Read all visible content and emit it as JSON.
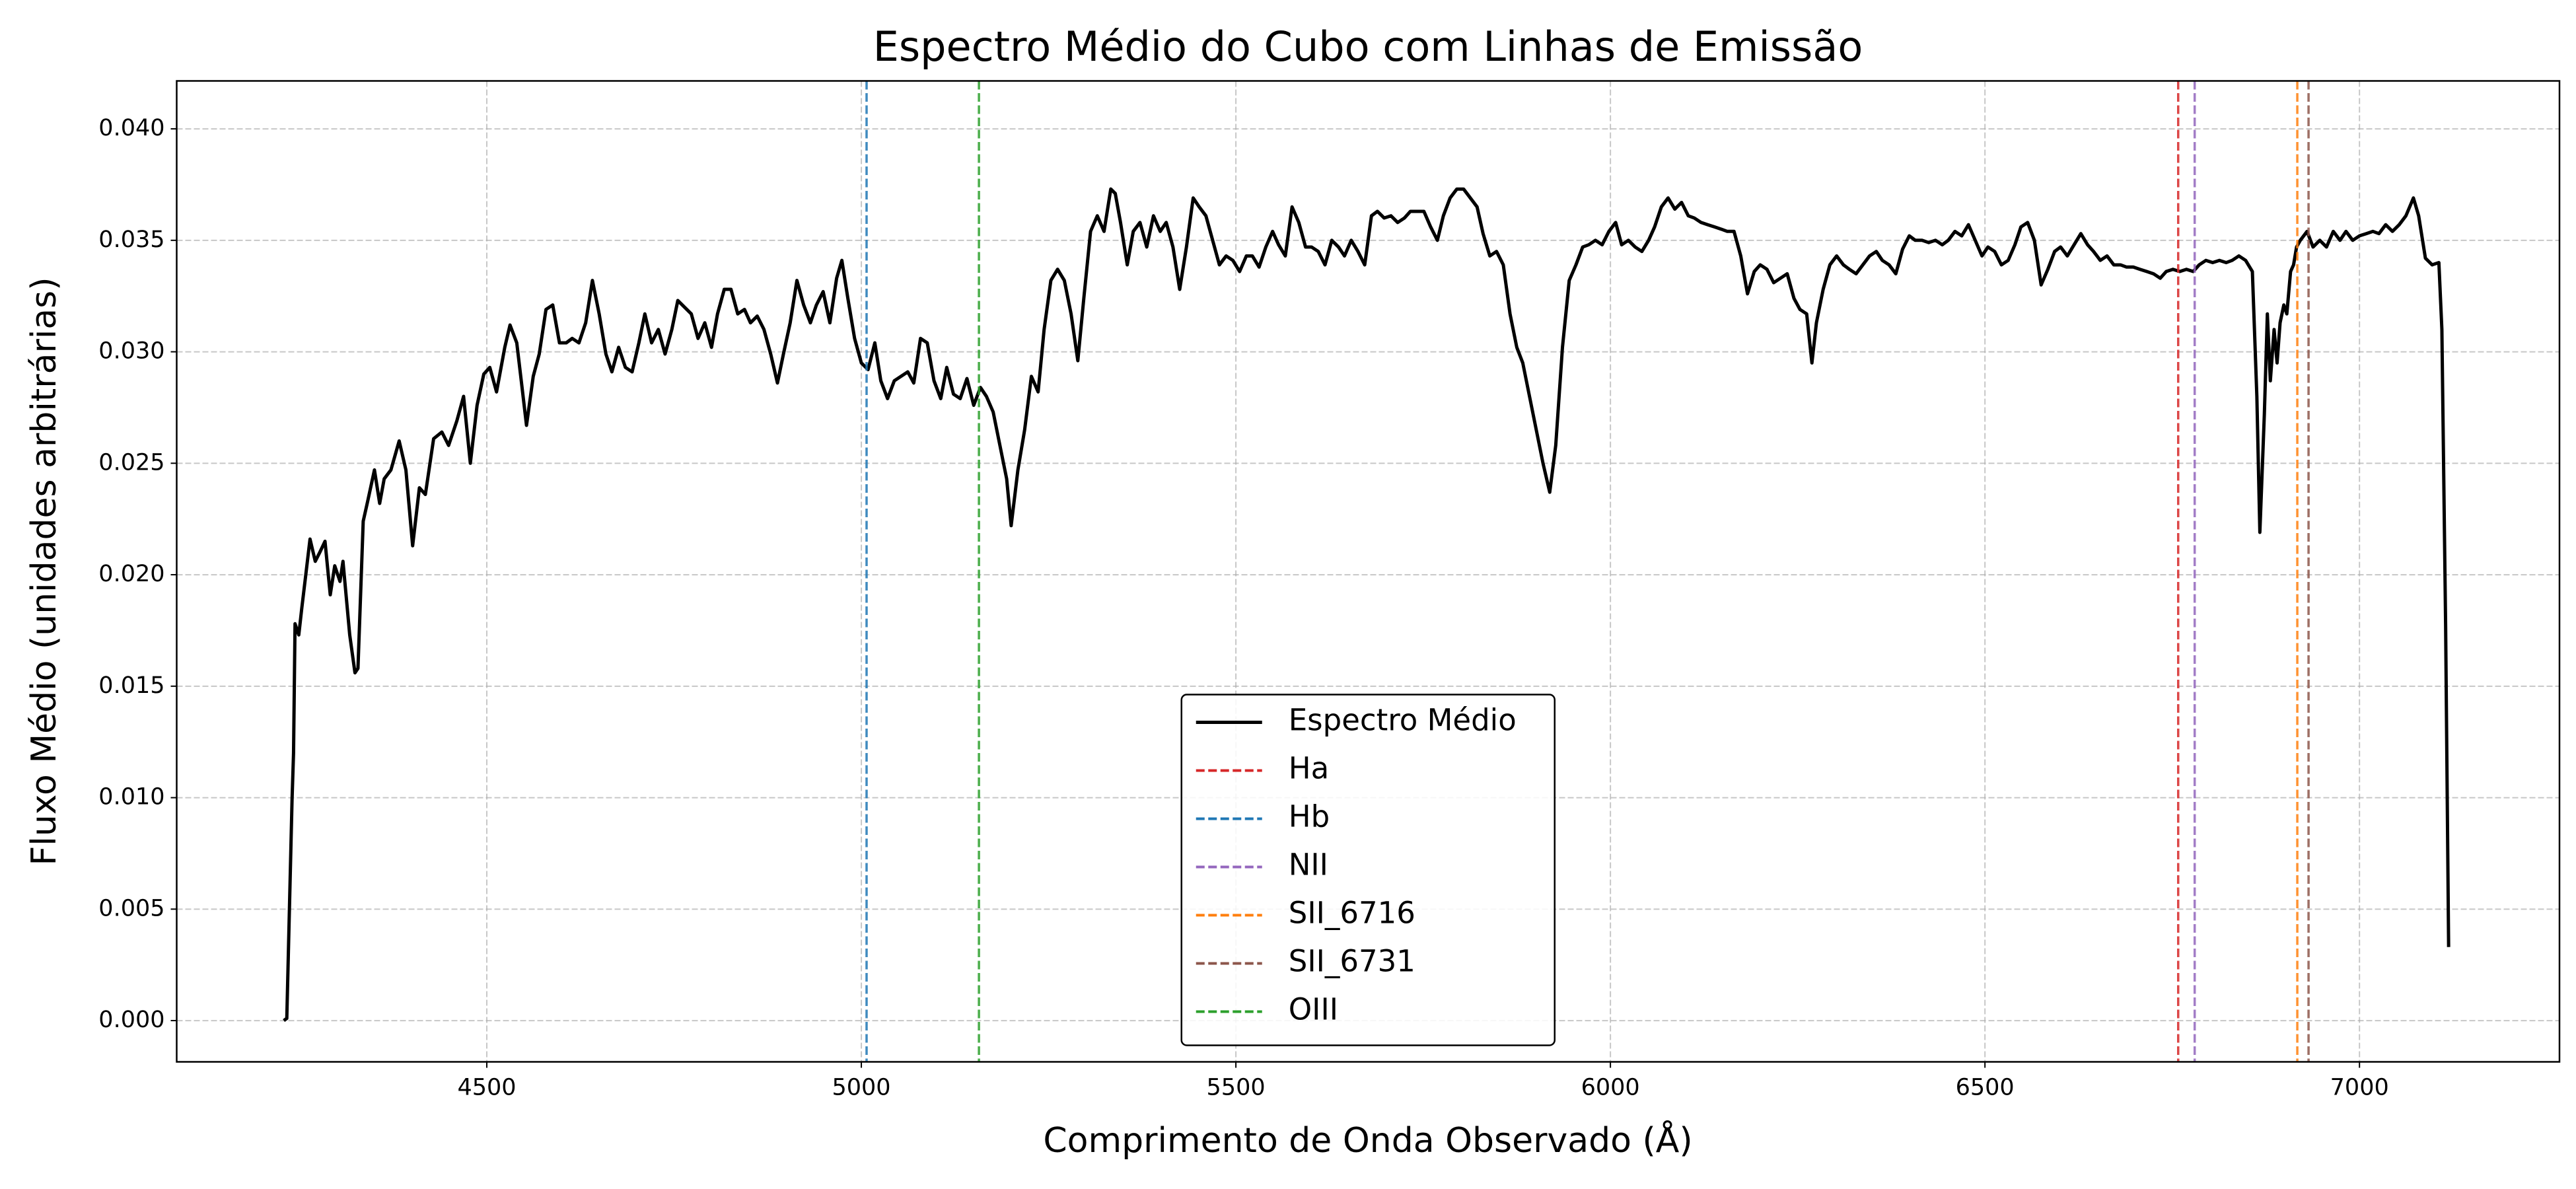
{
  "chart_data": {
    "type": "line",
    "title": "Espectro Médio do Cubo com Linhas de Emissão",
    "xlabel": "Comprimento de Onda Observado (Å)",
    "ylabel": "Fluxo Médio (unidades arbitrárias)",
    "xlim": [
      4086,
      7267
    ],
    "ylim": [
      -0.00185,
      0.04215
    ],
    "xticks": [
      4500,
      5000,
      5500,
      6000,
      6500,
      7000
    ],
    "yticks": [
      {
        "value": 0,
        "label": "0.000"
      },
      0.005,
      {
        "value": 0.01,
        "label": "0.010"
      },
      0.015,
      {
        "value": 0.02,
        "label": "0.020"
      },
      0.025,
      {
        "value": 0.03,
        "label": "0.030"
      },
      0.035,
      {
        "value": 0.04,
        "label": "0.040"
      }
    ],
    "grid": true,
    "legend": "lower center",
    "x": [
      4229,
      4233,
      4240,
      4242,
      4244,
      4249,
      4253,
      4258,
      4264,
      4271,
      4277,
      4284,
      4291,
      4297,
      4304,
      4308,
      4317,
      4324,
      4328,
      4335,
      4341,
      4350,
      4357,
      4363,
      4372,
      4383,
      4392,
      4401,
      4410,
      4418,
      4429,
      4440,
      4449,
      4460,
      4469,
      4478,
      4487,
      4496,
      4504,
      4513,
      4524,
      4531,
      4540,
      4546,
      4553,
      4562,
      4570,
      4579,
      4588,
      4597,
      4606,
      4614,
      4623,
      4632,
      4641,
      4650,
      4659,
      4667,
      4676,
      4685,
      4694,
      4703,
      4711,
      4720,
      4729,
      4738,
      4747,
      4755,
      4764,
      4773,
      4782,
      4791,
      4800,
      4808,
      4817,
      4826,
      4835,
      4844,
      4852,
      4861,
      4870,
      4879,
      4888,
      4896,
      4905,
      4914,
      4923,
      4932,
      4940,
      4949,
      4958,
      4967,
      4974,
      4982,
      4991,
      5000,
      5009,
      5018,
      5026,
      5035,
      5044,
      5053,
      5062,
      5070,
      5079,
      5088,
      5097,
      5106,
      5114,
      5123,
      5132,
      5141,
      5150,
      5159,
      5167,
      5176,
      5185,
      5194,
      5200,
      5209,
      5218,
      5227,
      5236,
      5244,
      5253,
      5262,
      5271,
      5280,
      5289,
      5297,
      5306,
      5315,
      5324,
      5333,
      5339,
      5346,
      5355,
      5363,
      5372,
      5381,
      5390,
      5399,
      5407,
      5416,
      5425,
      5434,
      5443,
      5451,
      5460,
      5469,
      5478,
      5487,
      5496,
      5505,
      5514,
      5522,
      5531,
      5540,
      5549,
      5557,
      5566,
      5575,
      5584,
      5593,
      5601,
      5610,
      5619,
      5628,
      5637,
      5645,
      5654,
      5663,
      5672,
      5681,
      5689,
      5698,
      5707,
      5716,
      5725,
      5733,
      5742,
      5751,
      5760,
      5769,
      5777,
      5786,
      5795,
      5804,
      5813,
      5822,
      5830,
      5839,
      5848,
      5857,
      5866,
      5875,
      5883,
      5892,
      5901,
      5910,
      5919,
      5927,
      5936,
      5945,
      5954,
      5963,
      5971,
      5980,
      5989,
      5998,
      6007,
      6015,
      6024,
      6033,
      6042,
      6051,
      6059,
      6068,
      6077,
      6086,
      6095,
      6104,
      6112,
      6121,
      6130,
      6139,
      6148,
      6156,
      6165,
      6174,
      6183,
      6192,
      6200,
      6209,
      6218,
      6227,
      6236,
      6245,
      6253,
      6262,
      6269,
      6275,
      6284,
      6293,
      6302,
      6311,
      6319,
      6328,
      6337,
      6346,
      6355,
      6363,
      6372,
      6381,
      6390,
      6399,
      6407,
      6416,
      6425,
      6434,
      6443,
      6451,
      6460,
      6469,
      6478,
      6487,
      6496,
      6504,
      6513,
      6522,
      6531,
      6540,
      6548,
      6557,
      6566,
      6575,
      6584,
      6593,
      6601,
      6610,
      6619,
      6628,
      6637,
      6645,
      6654,
      6663,
      6672,
      6681,
      6689,
      6698,
      6707,
      6716,
      6725,
      6734,
      6742,
      6751,
      6760,
      6769,
      6778,
      6786,
      6795,
      6804,
      6813,
      6822,
      6830,
      6839,
      6848,
      6857,
      6863,
      6867,
      6873,
      6877,
      6881,
      6886,
      6890,
      6894,
      6899,
      6903,
      6908,
      6912,
      6916,
      6921,
      6930,
      6938,
      6947,
      6956,
      6965,
      6974,
      6982,
      6991,
      7000,
      7009,
      7018,
      7026,
      7035,
      7044,
      7053,
      7062,
      7072,
      7079,
      7088,
      7097,
      7106,
      7110,
      7115,
      7119
    ],
    "series": [
      {
        "name": "Espectro Médio",
        "color": "#000000",
        "values": [
          0.0,
          0.0001,
          0.0099,
          0.012,
          0.0178,
          0.0173,
          0.0185,
          0.0199,
          0.0216,
          0.0206,
          0.021,
          0.0215,
          0.0191,
          0.0204,
          0.0197,
          0.0206,
          0.0173,
          0.0156,
          0.0158,
          0.0224,
          0.0233,
          0.0247,
          0.0232,
          0.0243,
          0.0247,
          0.026,
          0.0247,
          0.0213,
          0.0239,
          0.0236,
          0.0261,
          0.0264,
          0.0258,
          0.0269,
          0.028,
          0.025,
          0.0276,
          0.029,
          0.0293,
          0.0282,
          0.0302,
          0.0312,
          0.0304,
          0.0287,
          0.0267,
          0.0289,
          0.0299,
          0.0319,
          0.0321,
          0.0304,
          0.0304,
          0.0306,
          0.0304,
          0.0313,
          0.0332,
          0.0317,
          0.0299,
          0.0291,
          0.0302,
          0.0293,
          0.0291,
          0.0304,
          0.0317,
          0.0304,
          0.031,
          0.0299,
          0.031,
          0.0323,
          0.032,
          0.0317,
          0.0306,
          0.0313,
          0.0302,
          0.0317,
          0.0328,
          0.0328,
          0.0317,
          0.0319,
          0.0313,
          0.0316,
          0.031,
          0.0299,
          0.0286,
          0.0299,
          0.0313,
          0.0332,
          0.0321,
          0.0313,
          0.0321,
          0.0327,
          0.0313,
          0.0333,
          0.0341,
          0.0324,
          0.0306,
          0.0295,
          0.0292,
          0.0304,
          0.0287,
          0.0279,
          0.0287,
          0.0289,
          0.0291,
          0.0286,
          0.0306,
          0.0304,
          0.0287,
          0.0279,
          0.0293,
          0.0281,
          0.0279,
          0.0288,
          0.0276,
          0.0284,
          0.028,
          0.0273,
          0.0258,
          0.0243,
          0.0222,
          0.0247,
          0.0265,
          0.0289,
          0.0282,
          0.031,
          0.0332,
          0.0337,
          0.0332,
          0.0317,
          0.0296,
          0.0324,
          0.0354,
          0.0361,
          0.0354,
          0.0373,
          0.0371,
          0.0358,
          0.0339,
          0.0354,
          0.0358,
          0.0347,
          0.0361,
          0.0354,
          0.0358,
          0.0347,
          0.0328,
          0.0347,
          0.0369,
          0.0365,
          0.0361,
          0.035,
          0.0339,
          0.0343,
          0.0341,
          0.0336,
          0.0343,
          0.0343,
          0.0338,
          0.0347,
          0.0354,
          0.0348,
          0.0343,
          0.0365,
          0.0358,
          0.0347,
          0.0347,
          0.0345,
          0.0339,
          0.035,
          0.0347,
          0.0343,
          0.035,
          0.0345,
          0.0339,
          0.0361,
          0.0363,
          0.036,
          0.0361,
          0.0358,
          0.036,
          0.0363,
          0.0363,
          0.0363,
          0.0356,
          0.035,
          0.0361,
          0.0369,
          0.0373,
          0.0373,
          0.0369,
          0.0365,
          0.0353,
          0.0343,
          0.0345,
          0.0339,
          0.0317,
          0.0302,
          0.0295,
          0.028,
          0.0265,
          0.025,
          0.0237,
          0.0258,
          0.0302,
          0.0332,
          0.0339,
          0.0347,
          0.0348,
          0.035,
          0.0348,
          0.0354,
          0.0358,
          0.0348,
          0.035,
          0.0347,
          0.0345,
          0.035,
          0.0356,
          0.0365,
          0.0369,
          0.0364,
          0.0367,
          0.0361,
          0.036,
          0.0358,
          0.0357,
          0.0356,
          0.0355,
          0.0354,
          0.0354,
          0.0343,
          0.0326,
          0.0336,
          0.0339,
          0.0337,
          0.0331,
          0.0333,
          0.0335,
          0.0324,
          0.0319,
          0.0317,
          0.0295,
          0.0313,
          0.0328,
          0.0339,
          0.0343,
          0.0339,
          0.0337,
          0.0335,
          0.0339,
          0.0343,
          0.0345,
          0.0341,
          0.0339,
          0.0335,
          0.0346,
          0.0352,
          0.035,
          0.035,
          0.0349,
          0.035,
          0.0348,
          0.035,
          0.0354,
          0.0352,
          0.0357,
          0.035,
          0.0343,
          0.0347,
          0.0345,
          0.0339,
          0.0341,
          0.0348,
          0.0356,
          0.0358,
          0.035,
          0.033,
          0.0337,
          0.0345,
          0.0347,
          0.0343,
          0.0348,
          0.0353,
          0.0348,
          0.0345,
          0.0341,
          0.0343,
          0.0339,
          0.0339,
          0.0338,
          0.0338,
          0.0337,
          0.0336,
          0.0335,
          0.0333,
          0.0336,
          0.0337,
          0.0336,
          0.0337,
          0.0336,
          0.0339,
          0.0341,
          0.034,
          0.0341,
          0.034,
          0.0341,
          0.0343,
          0.0341,
          0.0336,
          0.028,
          0.0219,
          0.0272,
          0.0317,
          0.0287,
          0.031,
          0.0295,
          0.0313,
          0.0321,
          0.0317,
          0.0336,
          0.0339,
          0.0347,
          0.035,
          0.0354,
          0.0347,
          0.035,
          0.0347,
          0.0354,
          0.035,
          0.0354,
          0.035,
          0.0352,
          0.0353,
          0.0354,
          0.0353,
          0.0357,
          0.0354,
          0.0357,
          0.0361,
          0.0369,
          0.0361,
          0.0342,
          0.0339,
          0.034,
          0.031,
          0.0177,
          0.0033
        ]
      }
    ],
    "vlines": [
      {
        "name": "Ha",
        "x": 6758,
        "color": "#d62728"
      },
      {
        "name": "Hb",
        "x": 5007,
        "color": "#1f77b4"
      },
      {
        "name": "NII",
        "x": 6780,
        "color": "#9467bd"
      },
      {
        "name": "SII_6716",
        "x": 6917,
        "color": "#ff7f0e"
      },
      {
        "name": "SII_6731",
        "x": 6932,
        "color": "#8c564b"
      },
      {
        "name": "OIII",
        "x": 5157,
        "color": "#2ca02c"
      }
    ]
  }
}
